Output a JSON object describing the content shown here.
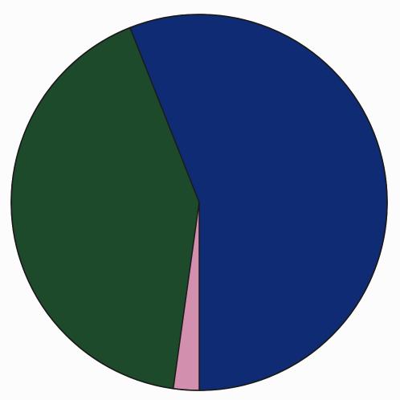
{
  "chart_data": {
    "type": "pie",
    "title": "",
    "slices": [
      {
        "value": 56.0,
        "color": "#0f2b73"
      },
      {
        "value": 41.8,
        "color": "#1e4a2c"
      },
      {
        "value": 2.2,
        "color": "#d38fae"
      }
    ],
    "start_angle_deg": 180,
    "direction": "counterclockwise",
    "outline_color": "#1a1a1a"
  }
}
